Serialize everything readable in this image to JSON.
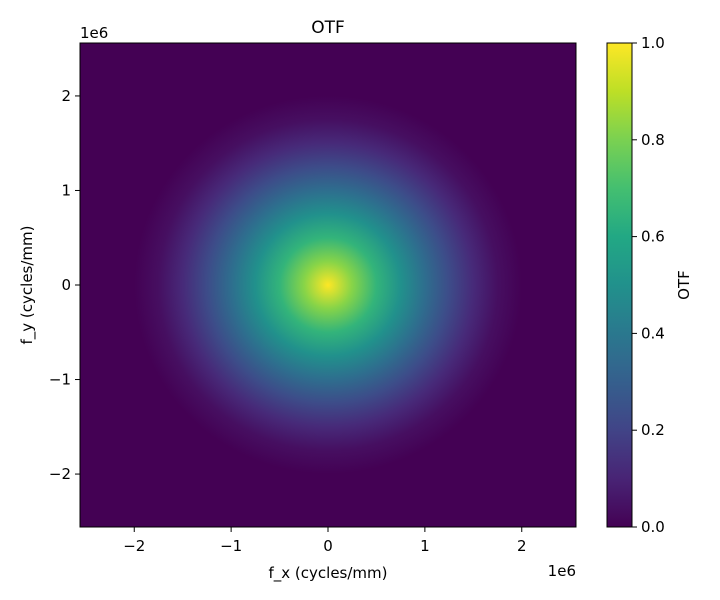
{
  "chart_data": {
    "type": "heatmap",
    "title": "OTF",
    "xlabel": "f_x (cycles/mm)",
    "ylabel": "f_y (cycles/mm)",
    "x_offset_text": "1e6",
    "y_offset_text": "1e6",
    "xlim": [
      -2.56,
      2.56
    ],
    "ylim": [
      -2.56,
      2.56
    ],
    "axis_scale": 1000000,
    "x_ticks": [
      -2,
      -1,
      0,
      1,
      2
    ],
    "y_ticks": [
      -2,
      -1,
      0,
      1,
      2
    ],
    "x_tick_labels": [
      "−2",
      "−1",
      "0",
      "1",
      "2"
    ],
    "y_tick_labels": [
      "−2",
      "−1",
      "0",
      "1",
      "2"
    ],
    "colormap": "viridis",
    "colorbar": {
      "label": "OTF",
      "range": [
        0.0,
        1.0
      ],
      "ticks": [
        0.0,
        0.2,
        0.4,
        0.6,
        0.8,
        1.0
      ],
      "tick_labels": [
        "0.0",
        "0.2",
        "0.4",
        "0.6",
        "0.8",
        "1.0"
      ]
    },
    "field": {
      "description_of_values": "Circularly symmetric OTF, peak 1.0 at origin, falling to 0 near radius 2.0e6 cycles/mm",
      "radial_profile": {
        "r": [
          0.0,
          0.25,
          0.5,
          0.75,
          1.0,
          1.25,
          1.5,
          1.75,
          2.0
        ],
        "value": [
          1.0,
          0.82,
          0.65,
          0.5,
          0.36,
          0.23,
          0.12,
          0.04,
          0.0
        ]
      }
    },
    "grid": false
  }
}
